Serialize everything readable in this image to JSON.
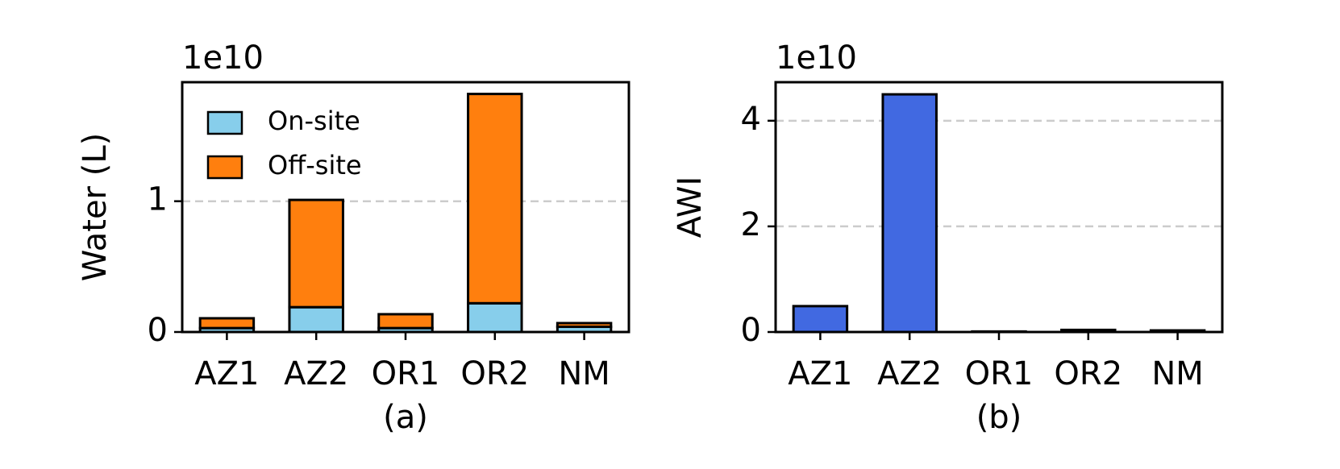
{
  "chart_data": [
    {
      "type": "stacked_bar",
      "offset_text": "1e10",
      "ylabel": "Water (L)",
      "xlabel": "(a)",
      "categories": [
        "AZ1",
        "AZ2",
        "OR1",
        "OR2",
        "NM"
      ],
      "series": [
        {
          "name": "On-site",
          "color": "#87ceeb",
          "values": [
            0.03,
            0.19,
            0.03,
            0.22,
            0.04
          ]
        },
        {
          "name": "Off-site",
          "color": "#ff7f0e",
          "values": [
            0.075,
            0.82,
            0.106,
            1.6,
            0.028
          ]
        }
      ],
      "ylim": [
        0,
        1.91
      ],
      "yticks": [
        0,
        1
      ],
      "grid": true,
      "legend": "upper left"
    },
    {
      "type": "bar",
      "offset_text": "1e10",
      "ylabel": "AWI",
      "xlabel": "(b)",
      "categories": [
        "AZ1",
        "AZ2",
        "OR1",
        "OR2",
        "NM"
      ],
      "values": [
        0.49,
        4.5,
        0.01,
        0.04,
        0.03
      ],
      "color": "#4169e1",
      "ylim": [
        0,
        4.73
      ],
      "yticks": [
        0,
        2,
        4
      ],
      "grid": true
    }
  ]
}
